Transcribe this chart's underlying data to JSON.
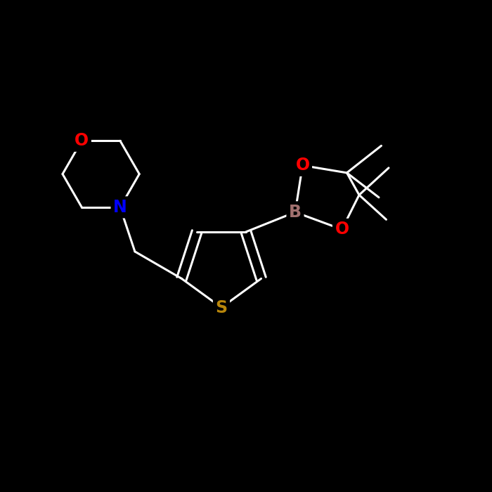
{
  "bg_color": "#000000",
  "atom_colors": {
    "C": "#ffffff",
    "N": "#0000ff",
    "O": "#ff0000",
    "S": "#b8860b",
    "B": "#a0706e"
  },
  "bond_color": "#ffffff",
  "bond_width": 2.2,
  "font_size_atom": 17,
  "canvas_xlim": [
    0,
    10
  ],
  "canvas_ylim": [
    0,
    10
  ]
}
